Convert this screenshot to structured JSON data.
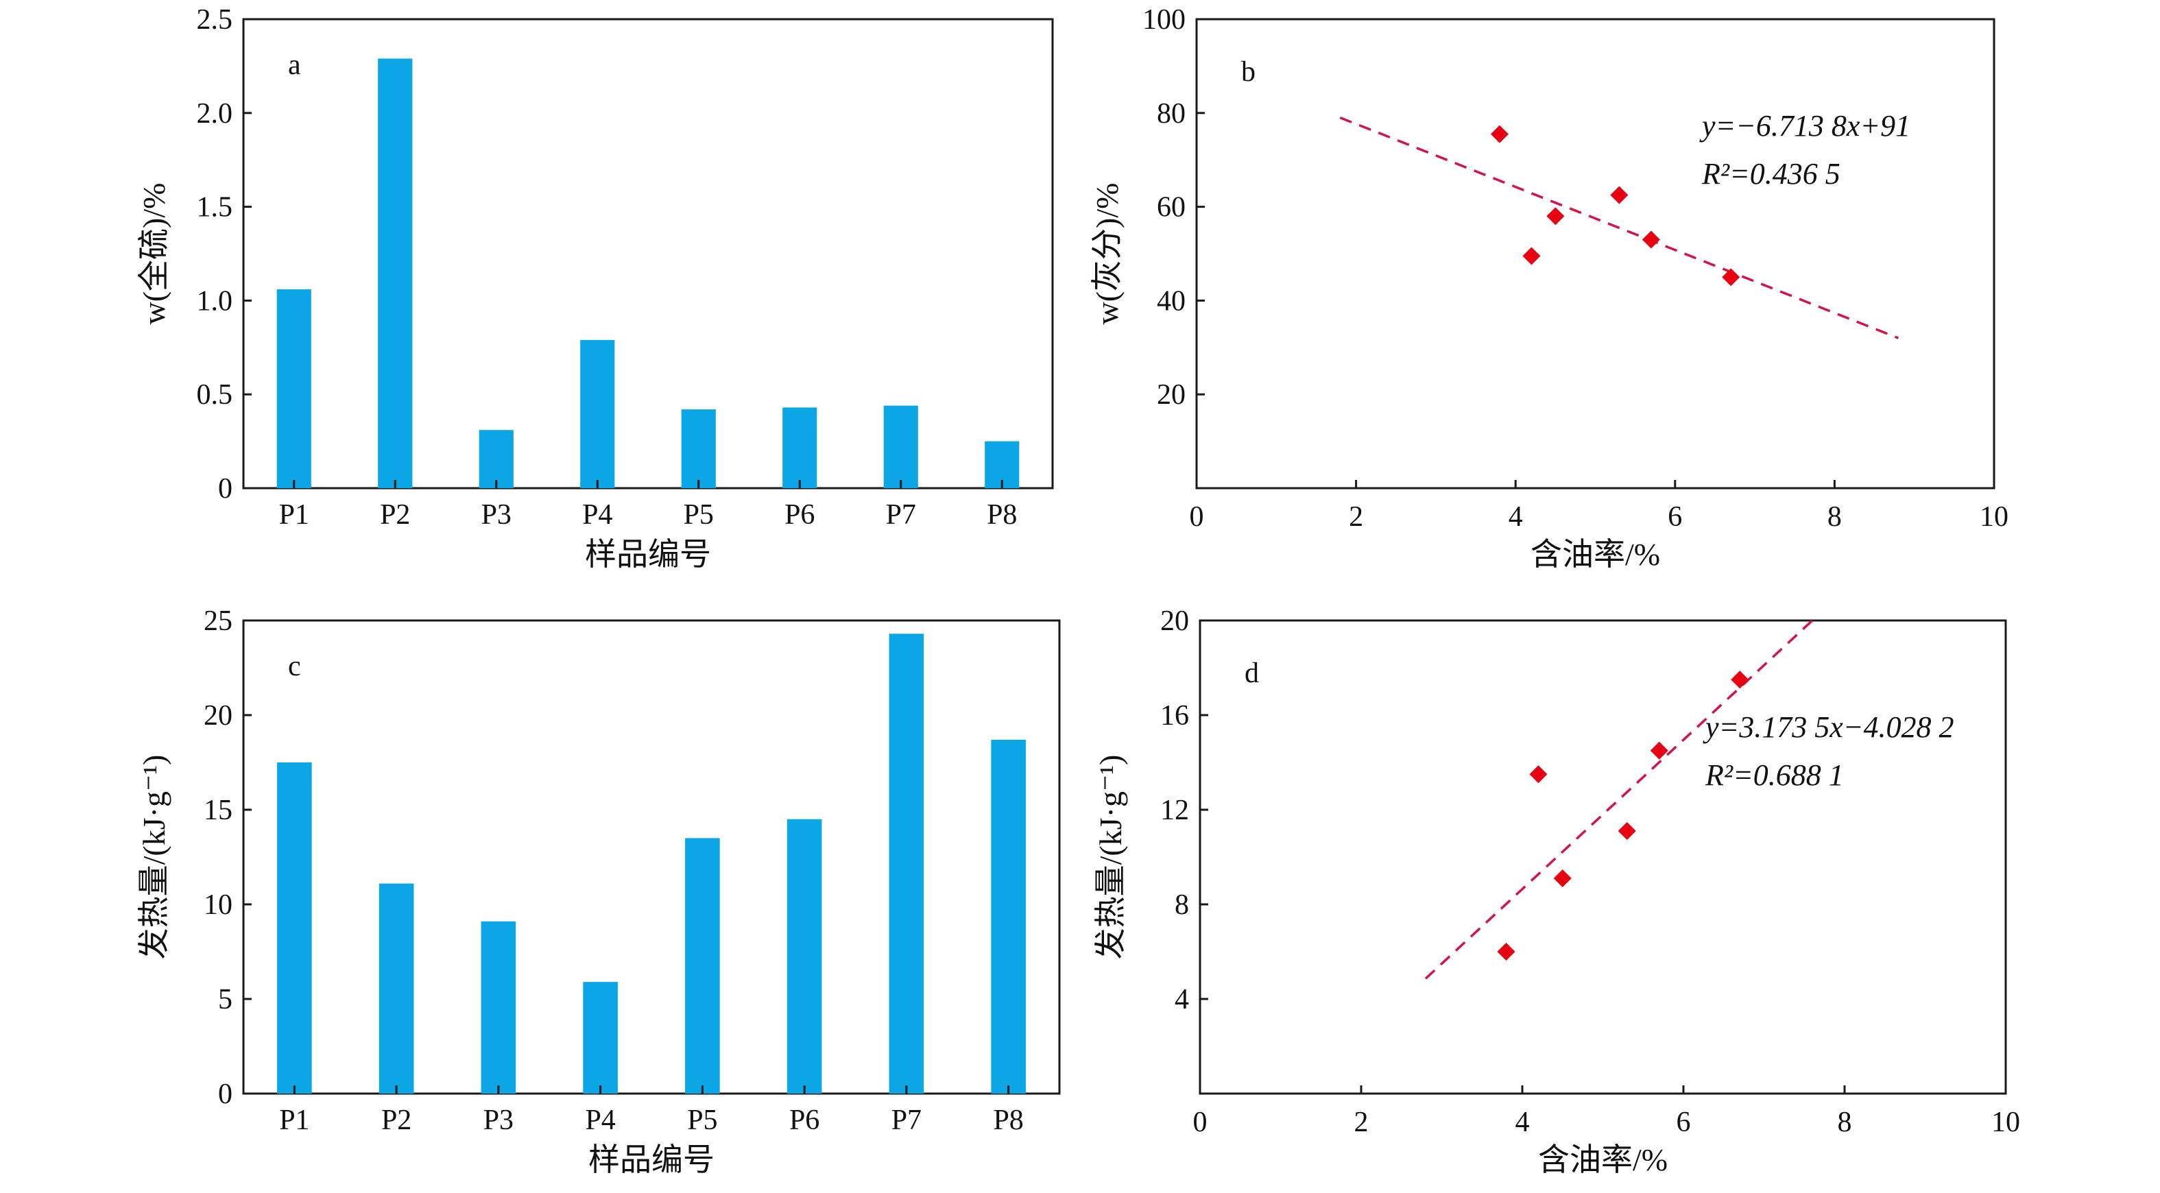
{
  "chart_data": [
    {
      "id": "a",
      "type": "bar",
      "panel_label": "a",
      "categories": [
        "P1",
        "P2",
        "P3",
        "P4",
        "P5",
        "P6",
        "P7",
        "P8"
      ],
      "values": [
        1.06,
        2.29,
        0.31,
        0.79,
        0.42,
        0.43,
        0.44,
        0.25
      ],
      "xlabel": "样品编号",
      "ylabel": "w(全硫)/%",
      "ylim": [
        0,
        2.5
      ],
      "yticks": [
        "0",
        "0.5",
        "1.0",
        "1.5",
        "2.0",
        "2.5"
      ],
      "color": "#0aa6e6"
    },
    {
      "id": "b",
      "type": "scatter",
      "panel_label": "b",
      "x": [
        3.8,
        4.2,
        4.5,
        5.3,
        5.7,
        6.7
      ],
      "y": [
        75.5,
        49.5,
        58.0,
        62.5,
        53.0,
        45.0
      ],
      "trendline": {
        "x": [
          1.8,
          8.8
        ],
        "y": [
          79.0,
          32.0
        ]
      },
      "equation": "y=−6.713 8x+91",
      "r2": "R²=0.436 5",
      "xlabel": "含油率/%",
      "ylabel": "w(灰分)/%",
      "xlim": [
        0,
        10
      ],
      "ylim": [
        0,
        100
      ],
      "xticks": [
        "0",
        "2",
        "4",
        "6",
        "8",
        "10"
      ],
      "yticks": [
        "20",
        "40",
        "60",
        "80",
        "100"
      ],
      "color": "#e60012",
      "line_color": "#d2144a"
    },
    {
      "id": "c",
      "type": "bar",
      "panel_label": "c",
      "categories": [
        "P1",
        "P2",
        "P3",
        "P4",
        "P5",
        "P6",
        "P7",
        "P8"
      ],
      "values": [
        17.5,
        11.1,
        9.1,
        5.9,
        13.5,
        14.5,
        24.3,
        18.7
      ],
      "xlabel": "样品编号",
      "ylabel": "发热量/(kJ·g⁻¹)",
      "ylim": [
        0,
        25
      ],
      "yticks": [
        "0",
        "5",
        "10",
        "15",
        "20",
        "25"
      ],
      "color": "#0aa6e6"
    },
    {
      "id": "d",
      "type": "scatter",
      "panel_label": "d",
      "x": [
        3.8,
        4.2,
        4.5,
        5.3,
        5.7,
        6.7
      ],
      "y": [
        6.0,
        13.5,
        9.1,
        11.1,
        14.5,
        17.5
      ],
      "trendline": {
        "x": [
          2.8,
          7.6
        ],
        "y": [
          4.86,
          20.0
        ]
      },
      "equation": "y=3.173 5x−4.028 2",
      "r2": "R²=0.688 1",
      "xlabel": "含油率/%",
      "ylabel": "发热量/(kJ·g⁻¹)",
      "xlim": [
        0,
        10
      ],
      "ylim": [
        0,
        20
      ],
      "xticks": [
        "0",
        "2",
        "4",
        "6",
        "8",
        "10"
      ],
      "yticks": [
        "4",
        "8",
        "12",
        "16",
        "20"
      ],
      "color": "#e60012",
      "line_color": "#d2144a"
    }
  ]
}
